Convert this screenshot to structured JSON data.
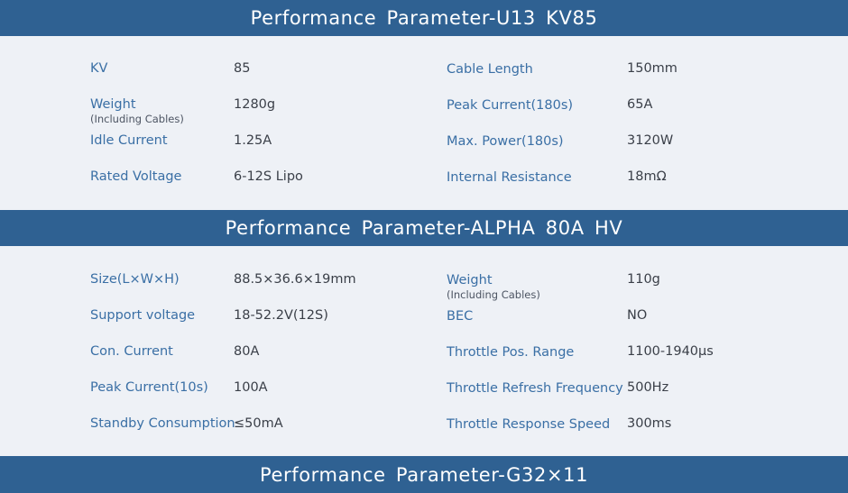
{
  "sections": [
    {
      "title": "Performance Parameter-U13 KV85",
      "left": [
        {
          "label": "KV",
          "value": "85"
        },
        {
          "label": "Weight",
          "sub": "(Including Cables)",
          "value": "1280g"
        },
        {
          "label": "Idle Current",
          "value": "1.25A"
        },
        {
          "label": "Rated Voltage",
          "value": "6-12S Lipo"
        }
      ],
      "right": [
        {
          "label": "Cable Length",
          "value": "150mm"
        },
        {
          "label": "Peak Current(180s)",
          "value": "65A"
        },
        {
          "label": "Max. Power(180s)",
          "value": "3120W"
        },
        {
          "label": "Internal Resistance",
          "value": "18mΩ"
        }
      ]
    },
    {
      "title": "Performance Parameter-ALPHA 80A HV",
      "left": [
        {
          "label": "Size(L×W×H)",
          "value": "88.5×36.6×19mm"
        },
        {
          "label": "Support voltage",
          "value": "18-52.2V(12S)"
        },
        {
          "label": "Con. Current",
          "value": "80A"
        },
        {
          "label": "Peak Current(10s)",
          "value": "100A"
        },
        {
          "label": "Standby Consumption",
          "value": "≤50mA"
        }
      ],
      "right": [
        {
          "label": "Weight",
          "sub": "(Including Cables)",
          "value": "110g"
        },
        {
          "label": "BEC",
          "value": "NO"
        },
        {
          "label": "Throttle Pos. Range",
          "value": "1100-1940μs"
        },
        {
          "label": "Throttle Refresh Frequency",
          "value": "500Hz"
        },
        {
          "label": "Throttle Response Speed",
          "value": "300ms"
        }
      ]
    },
    {
      "title": "Performance Parameter-G32×11"
    }
  ]
}
